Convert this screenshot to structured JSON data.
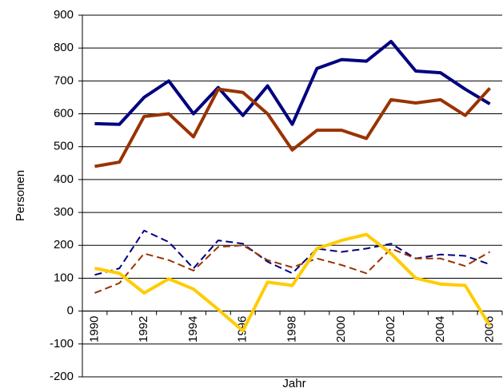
{
  "chart_data": {
    "type": "line",
    "y_label": "Personen",
    "x_label": "Jahr",
    "categories": [
      "1990",
      null,
      "1992",
      null,
      "1994",
      null,
      "1996",
      null,
      "1998",
      null,
      "2000",
      null,
      "2002",
      null,
      "2004",
      null,
      "2006"
    ],
    "series": [
      {
        "color": "#000080",
        "width": 4,
        "dash": false,
        "values": [
          570,
          568,
          650,
          700,
          600,
          680,
          595,
          685,
          568,
          738,
          765,
          760,
          820,
          730,
          725,
          675,
          630
        ]
      },
      {
        "color": "#993300",
        "width": 4,
        "dash": false,
        "values": [
          440,
          453,
          592,
          600,
          530,
          675,
          665,
          600,
          490,
          550,
          550,
          525,
          643,
          633,
          643,
          595,
          678
        ]
      },
      {
        "color": "#000080",
        "width": 2,
        "dash": true,
        "values": [
          110,
          130,
          245,
          210,
          130,
          215,
          205,
          150,
          115,
          190,
          180,
          190,
          205,
          160,
          172,
          168,
          142
        ]
      },
      {
        "color": "#993300",
        "width": 2,
        "dash": true,
        "values": [
          55,
          85,
          175,
          155,
          123,
          195,
          200,
          155,
          133,
          160,
          140,
          115,
          190,
          160,
          160,
          137,
          180
        ]
      },
      {
        "color": "#FFCC00",
        "width": 4,
        "dash": false,
        "values": [
          130,
          115,
          55,
          98,
          67,
          5,
          -60,
          88,
          78,
          190,
          215,
          233,
          175,
          100,
          82,
          78,
          -45
        ]
      }
    ],
    "ylim": [
      -200,
      900
    ],
    "yticks": [
      -200,
      -100,
      0,
      100,
      200,
      300,
      400,
      500,
      600,
      700,
      800,
      900
    ],
    "grid": true
  }
}
